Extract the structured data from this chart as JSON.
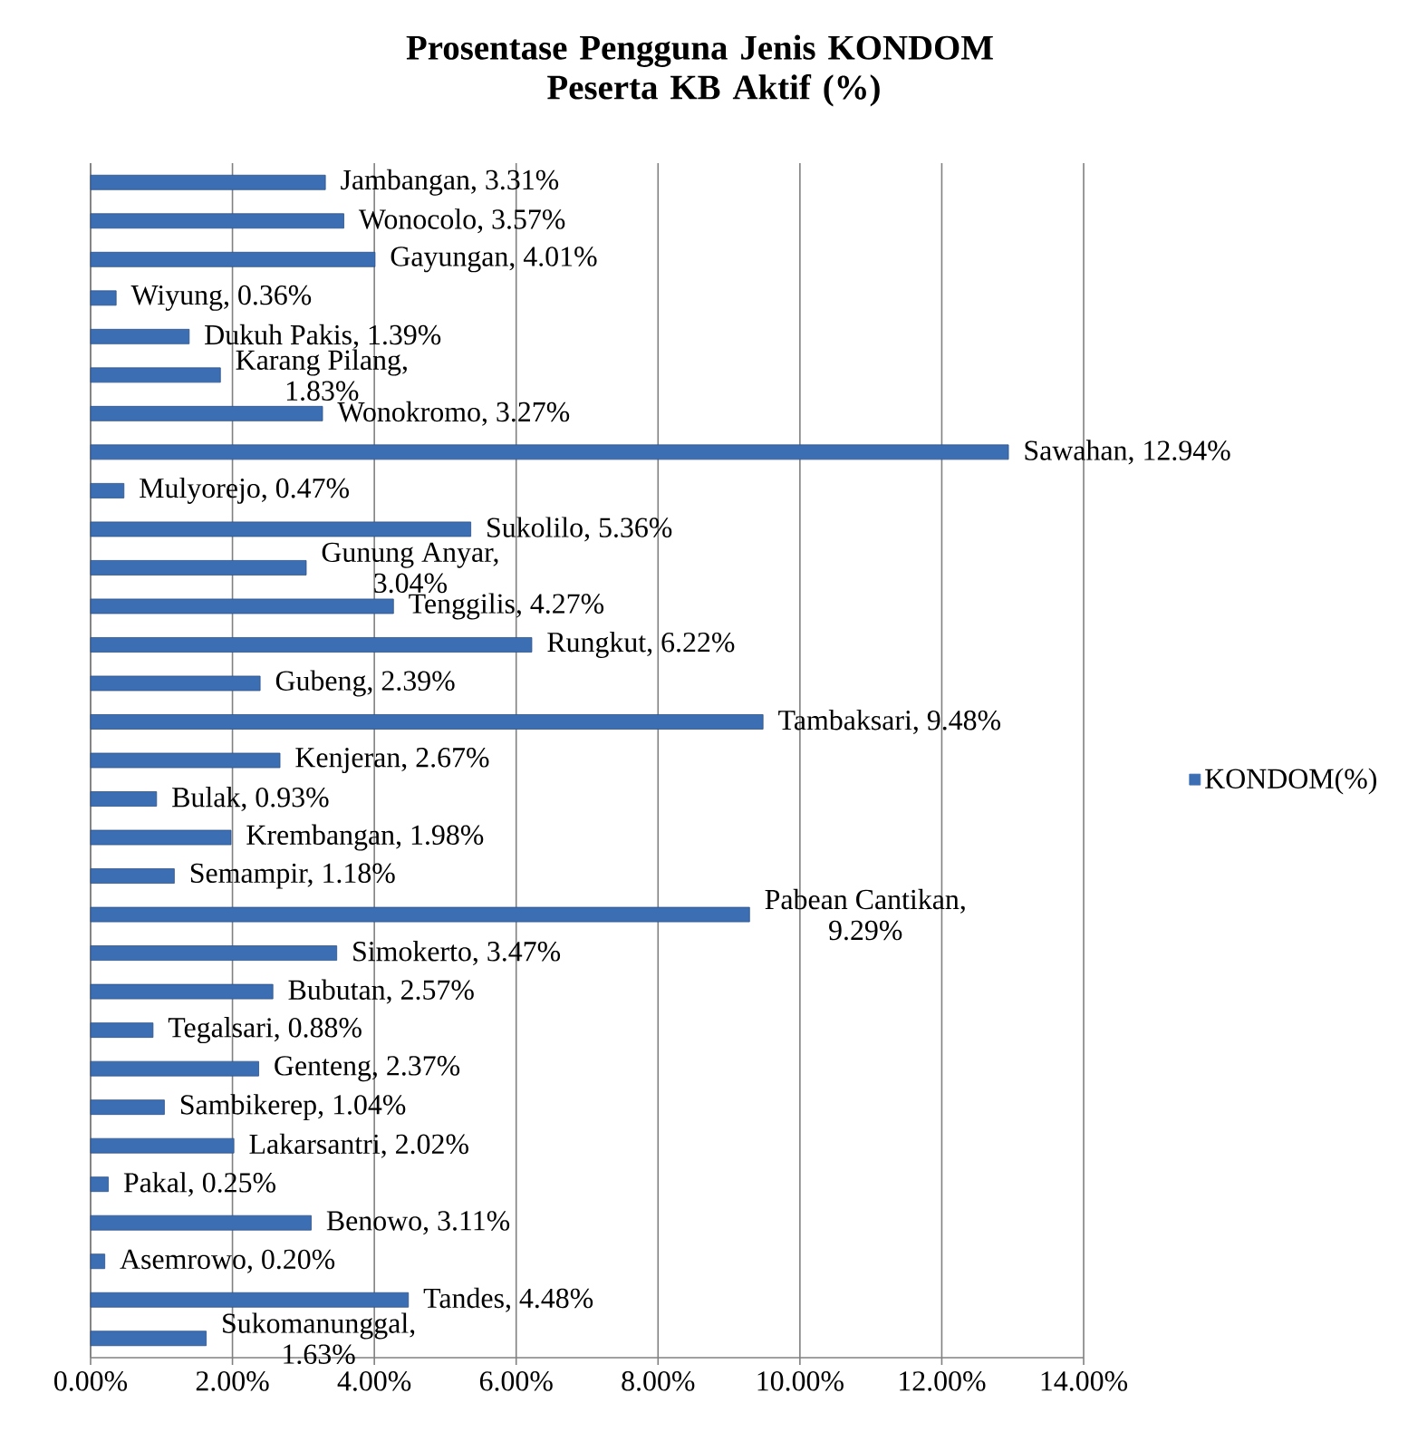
{
  "chart_data": {
    "type": "bar",
    "orientation": "horizontal",
    "title": "Prosentase Pengguna Jenis KONDOM Peserta KB Aktif (%)",
    "categories": [
      null,
      null,
      null,
      null,
      null,
      null,
      null,
      null,
      null,
      null,
      null,
      null,
      null,
      null,
      null,
      null,
      null,
      null,
      null,
      null,
      null,
      null,
      null,
      null,
      null,
      null,
      null,
      null,
      null,
      null,
      null
    ],
    "series": [
      {
        "name": "KONDOM(%)",
        "color": "#3c6eb4",
        "values": [
          3.31,
          3.57,
          4.01,
          0.36,
          1.39,
          1.83,
          3.27,
          12.94,
          0.47,
          5.36,
          3.04,
          4.27,
          6.22,
          2.39,
          9.48,
          2.67,
          0.93,
          1.98,
          1.18,
          9.29,
          3.47,
          2.57,
          0.88,
          2.37,
          1.04,
          2.02,
          0.25,
          3.11,
          0.2,
          4.48,
          1.63
        ],
        "value_labels": [
          "Jambangan, 3.31%",
          "Wonocolo, 3.57%",
          "Gayungan, 4.01%",
          "Wiyung, 0.36%",
          "Dukuh Pakis, 1.39%",
          "Karang Pilang, 1.83%",
          "Wonokromo, 3.27%",
          "Sawahan, 12.94%",
          "Mulyorejo, 0.47%",
          "Sukolilo, 5.36%",
          "Gunung Anyar, 3.04%",
          "Tenggilis, 4.27%",
          "Rungkut, 6.22%",
          "Gubeng, 2.39%",
          "Tambaksari, 9.48%",
          "Kenjeran, 2.67%",
          "Bulak, 0.93%",
          "Krembangan, 1.98%",
          "Semampir, 1.18%",
          "Pabean Cantikan, 9.29%",
          "Simokerto, 3.47%",
          "Bubutan, 2.57%",
          "Tegalsari, 0.88%",
          "Genteng, 2.37%",
          "Sambikerep, 1.04%",
          "Lakarsantri, 2.02%",
          "Pakal, 0.25%",
          "Benowo, 3.11%",
          "Asemrowo, 0.20%",
          "Tandes, 4.48%",
          "Sukomanunggal, 1.63%"
        ]
      }
    ],
    "xlim": [
      0,
      14
    ],
    "xticks": [
      {
        "value": 0,
        "label": "0.00%"
      },
      {
        "value": 2,
        "label": "2.00%"
      },
      {
        "value": 4,
        "label": "4.00%"
      },
      {
        "value": 6,
        "label": "6.00%"
      },
      {
        "value": 8,
        "label": "8.00%"
      },
      {
        "value": 10,
        "label": "10.00%"
      },
      {
        "value": 12,
        "label": "12.00%"
      },
      {
        "value": 14,
        "label": "14.00%"
      }
    ],
    "grid": "x",
    "legend": "right",
    "tick_labels": "x"
  }
}
